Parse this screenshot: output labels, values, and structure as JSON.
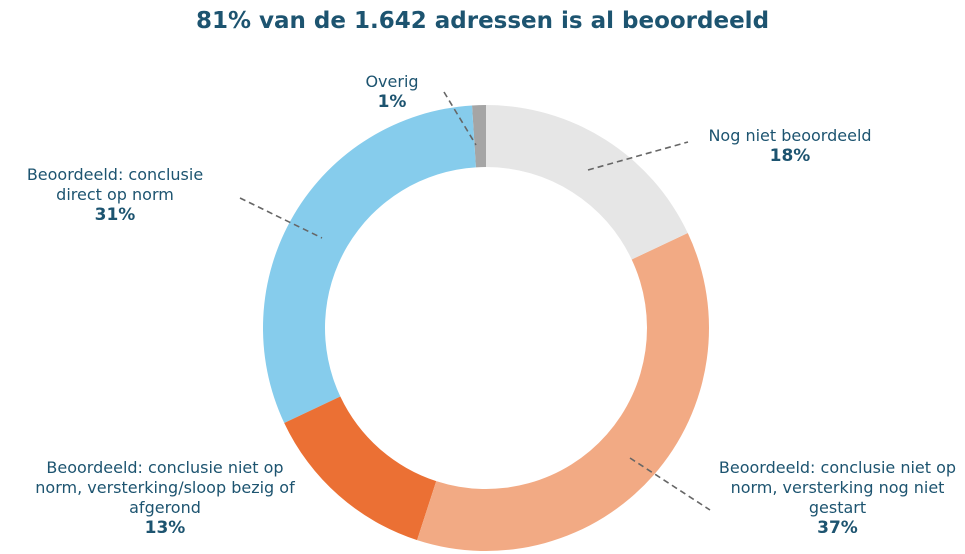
{
  "chart_data": {
    "type": "donut",
    "title": "81% van de 1.642 adressen is al beoordeeld",
    "categories": [
      "Nog niet beoordeeld",
      "Beoordeeld: conclusie niet op norm, versterking nog niet gestart",
      "Beoordeeld: conclusie niet op norm, versterking/sloop bezig of afgerond",
      "Beoordeeld: conclusie direct op norm",
      "Overig"
    ],
    "values": [
      18,
      37,
      13,
      31,
      1
    ],
    "value_labels": [
      "18%",
      "37%",
      "13%",
      "31%",
      "1%"
    ],
    "colors": [
      "#e6e6e6",
      "#f2aa84",
      "#eb7034",
      "#86ccec",
      "#a5a5a5"
    ]
  }
}
